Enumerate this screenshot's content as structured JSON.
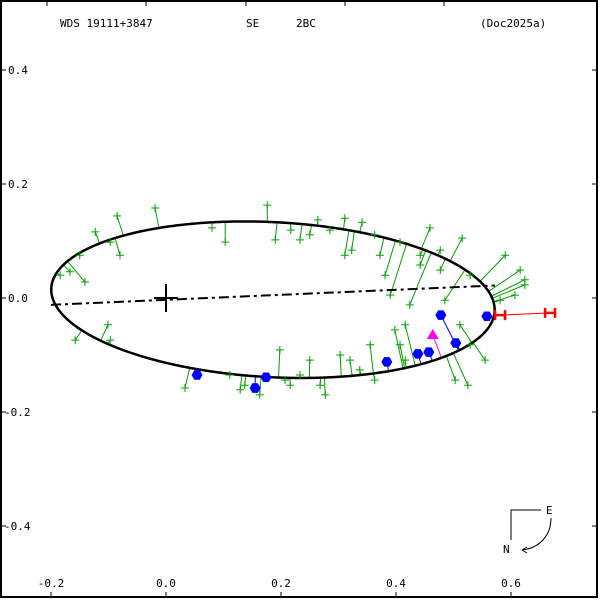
{
  "header": {
    "star_id": "WDS 19111+3847",
    "discoverer": "SE",
    "pair": "2BC",
    "reference": "(Doc2025a)"
  },
  "chart_data": {
    "type": "scatter",
    "title": "WDS 19111+3847   SE   2BC   (Doc2025a)",
    "xlabel": "",
    "ylabel": "",
    "xlim": [
      -0.289,
      0.75
    ],
    "ylim": [
      -0.523,
      0.523
    ],
    "x_ticks": [
      {
        "v": -0.2,
        "label": "-0.2"
      },
      {
        "v": 0.0,
        "label": "0.0"
      },
      {
        "v": 0.2,
        "label": "0.2"
      },
      {
        "v": 0.4,
        "label": "0.4"
      },
      {
        "v": 0.6,
        "label": "0.6"
      }
    ],
    "y_ticks": [
      {
        "v": 0.4,
        "label": "0.4"
      },
      {
        "v": 0.2,
        "label": "0.2"
      },
      {
        "v": 0.0,
        "label": "0.0"
      },
      {
        "v": -0.2,
        "label": "-0.2"
      },
      {
        "v": -0.4,
        "label": "-0.4"
      }
    ],
    "orbit_ellipse": {
      "center": [
        0.186,
        -0.003
      ],
      "a": 0.386,
      "b": 0.136,
      "tilt_deg": -3
    },
    "line_of_nodes": [
      [
        -0.2,
        -0.012
      ],
      [
        0.572,
        0.022
      ]
    ],
    "primary": [
      0,
      0
    ],
    "colors": {
      "orbit": "#000000",
      "micrometer": "#00a000",
      "speckle": "#0000ff",
      "special": "#ff00ff",
      "measure_h": "#ff0000"
    },
    "observations_micrometer": [
      [
        -0.085,
        0.144
      ],
      [
        -0.019,
        0.158
      ],
      [
        -0.123,
        0.116
      ],
      [
        -0.15,
        0.075
      ],
      [
        -0.08,
        0.075
      ],
      [
        -0.097,
        0.098
      ],
      [
        0.176,
        0.163
      ],
      [
        0.08,
        0.123
      ],
      [
        0.103,
        0.098
      ],
      [
        0.19,
        0.102
      ],
      [
        0.217,
        0.119
      ],
      [
        0.233,
        0.102
      ],
      [
        0.264,
        0.137
      ],
      [
        0.285,
        0.119
      ],
      [
        0.25,
        0.111
      ],
      [
        0.311,
        0.14
      ],
      [
        0.341,
        0.133
      ],
      [
        0.323,
        0.084
      ],
      [
        0.363,
        0.111
      ],
      [
        0.407,
        0.098
      ],
      [
        0.459,
        0.123
      ],
      [
        0.515,
        0.105
      ],
      [
        0.477,
        0.084
      ],
      [
        0.442,
        0.075
      ],
      [
        0.372,
        0.075
      ],
      [
        0.311,
        0.075
      ],
      [
        0.59,
        0.075
      ],
      [
        0.616,
        0.049
      ],
      [
        0.624,
        0.023
      ],
      [
        0.607,
        0.005
      ],
      [
        0.581,
        -0.004
      ],
      [
        0.381,
        0.04
      ],
      [
        0.39,
        0.005
      ],
      [
        0.442,
        0.058
      ],
      [
        0.477,
        0.049
      ],
      [
        0.529,
        0.04
      ],
      [
        0.416,
        -0.047
      ],
      [
        0.511,
        -0.047
      ],
      [
        0.529,
        -0.082
      ],
      [
        0.555,
        -0.109
      ],
      [
        0.525,
        -0.153
      ],
      [
        0.503,
        -0.144
      ],
      [
        0.424,
        -0.012
      ],
      [
        0.398,
        -0.056
      ],
      [
        0.485,
        -0.004
      ],
      [
        0.624,
        0.032
      ],
      [
        -0.184,
        0.04
      ],
      [
        -0.167,
        0.046
      ],
      [
        -0.141,
        0.028
      ],
      [
        -0.158,
        -0.074
      ],
      [
        -0.101,
        -0.047
      ],
      [
        -0.097,
        -0.074
      ],
      [
        0.033,
        -0.158
      ],
      [
        0.111,
        -0.135
      ],
      [
        0.198,
        -0.091
      ],
      [
        0.216,
        -0.153
      ],
      [
        0.233,
        -0.135
      ],
      [
        0.268,
        -0.153
      ],
      [
        0.277,
        -0.17
      ],
      [
        0.303,
        -0.1
      ],
      [
        0.32,
        -0.109
      ],
      [
        0.355,
        -0.082
      ],
      [
        0.363,
        -0.144
      ],
      [
        0.163,
        -0.17
      ],
      [
        0.25,
        -0.109
      ],
      [
        0.207,
        -0.144
      ],
      [
        0.129,
        -0.161
      ],
      [
        0.137,
        -0.153
      ],
      [
        0.337,
        -0.126
      ],
      [
        0.407,
        -0.082
      ],
      [
        0.416,
        -0.109
      ]
    ],
    "observations_speckle": [
      [
        0.054,
        -0.135
      ],
      [
        0.155,
        -0.158
      ],
      [
        0.174,
        -0.139
      ],
      [
        0.384,
        -0.112
      ],
      [
        0.438,
        -0.098
      ],
      [
        0.457,
        -0.095
      ],
      [
        0.504,
        -0.079
      ],
      [
        0.478,
        -0.03
      ],
      [
        0.558,
        -0.032
      ]
    ],
    "observations_special": [
      [
        0.464,
        -0.065
      ]
    ],
    "observations_measure_h": [
      [
        0.581,
        -0.03
      ],
      [
        0.668,
        -0.026
      ]
    ],
    "compass": {
      "east_label": "E",
      "north_label": "N"
    }
  }
}
